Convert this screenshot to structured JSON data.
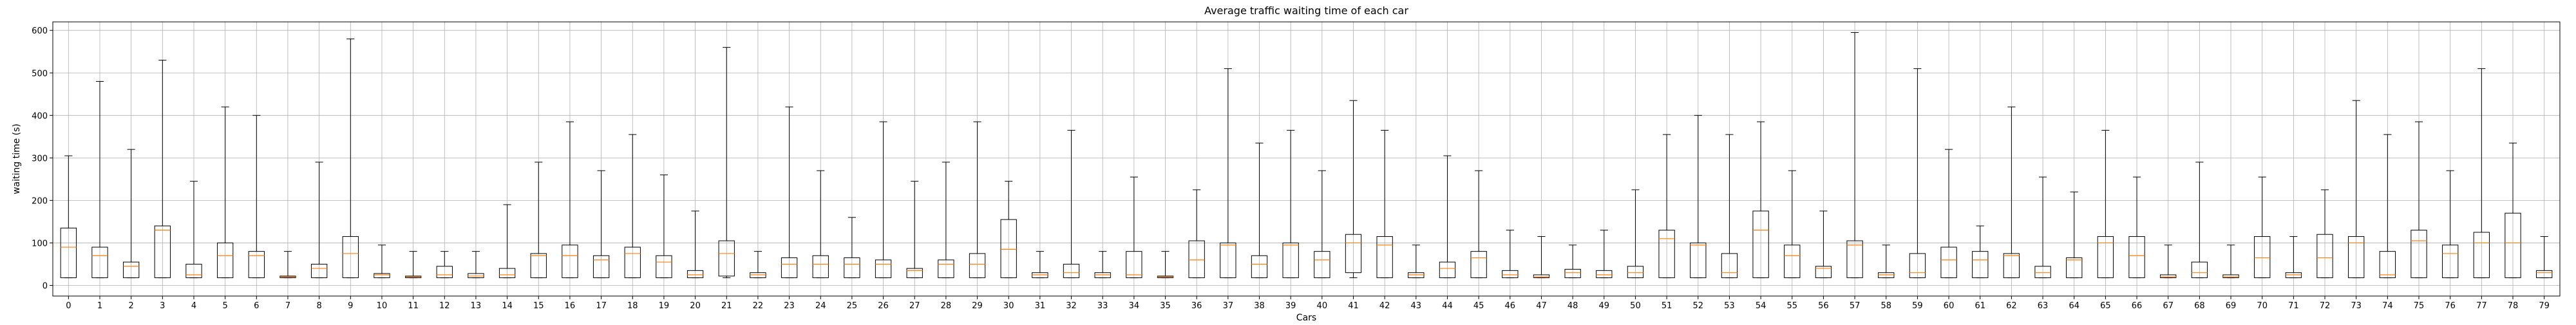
{
  "chart_data": {
    "type": "box",
    "title": "Average traffic waiting time of each car",
    "xlabel": "Cars",
    "ylabel": "waiting time (s)",
    "ylim": [
      -25,
      620
    ],
    "yticks": [
      0,
      100,
      200,
      300,
      400,
      500,
      600
    ],
    "grid": true,
    "categories": [
      "0",
      "1",
      "2",
      "3",
      "4",
      "5",
      "6",
      "7",
      "8",
      "9",
      "10",
      "11",
      "12",
      "13",
      "14",
      "15",
      "16",
      "17",
      "18",
      "19",
      "20",
      "21",
      "22",
      "23",
      "24",
      "25",
      "26",
      "27",
      "28",
      "29",
      "30",
      "31",
      "32",
      "33",
      "34",
      "35",
      "36",
      "37",
      "38",
      "39",
      "40",
      "41",
      "42",
      "43",
      "44",
      "45",
      "46",
      "47",
      "48",
      "49",
      "50",
      "51",
      "52",
      "53",
      "54",
      "55",
      "56",
      "57",
      "58",
      "59",
      "60",
      "61",
      "62",
      "63",
      "64",
      "65",
      "66",
      "67",
      "68",
      "69",
      "70",
      "71",
      "72",
      "73",
      "74",
      "75",
      "76",
      "77",
      "78",
      "79"
    ],
    "whisker_low": [
      18,
      18,
      18,
      18,
      18,
      18,
      18,
      18,
      18,
      18,
      18,
      18,
      18,
      18,
      18,
      18,
      18,
      18,
      18,
      18,
      18,
      18,
      18,
      18,
      18,
      18,
      18,
      18,
      18,
      18,
      18,
      18,
      18,
      18,
      18,
      18,
      18,
      18,
      18,
      18,
      18,
      18,
      18,
      18,
      18,
      18,
      18,
      18,
      18,
      18,
      18,
      18,
      18,
      18,
      18,
      18,
      18,
      18,
      18,
      18,
      18,
      18,
      18,
      18,
      18,
      18,
      18,
      18,
      18,
      18,
      18,
      18,
      18,
      18,
      18,
      18,
      18,
      18,
      18,
      18
    ],
    "q1": [
      18,
      18,
      18,
      18,
      18,
      18,
      18,
      18,
      18,
      18,
      18,
      18,
      18,
      18,
      18,
      18,
      18,
      18,
      18,
      18,
      18,
      22,
      18,
      18,
      18,
      18,
      18,
      18,
      18,
      18,
      18,
      18,
      18,
      18,
      18,
      18,
      18,
      18,
      18,
      18,
      18,
      30,
      18,
      18,
      18,
      18,
      18,
      18,
      18,
      18,
      18,
      18,
      18,
      18,
      18,
      18,
      18,
      18,
      18,
      18,
      18,
      18,
      18,
      18,
      18,
      18,
      18,
      18,
      18,
      18,
      18,
      18,
      18,
      18,
      18,
      18,
      18,
      18,
      18,
      18
    ],
    "median": [
      90,
      70,
      45,
      130,
      25,
      70,
      70,
      20,
      40,
      75,
      25,
      20,
      25,
      22,
      25,
      70,
      70,
      60,
      75,
      55,
      25,
      75,
      25,
      50,
      50,
      50,
      50,
      35,
      50,
      50,
      85,
      25,
      30,
      25,
      25,
      20,
      60,
      95,
      50,
      95,
      60,
      100,
      95,
      25,
      40,
      65,
      25,
      20,
      30,
      25,
      30,
      110,
      95,
      30,
      130,
      70,
      40,
      95,
      25,
      30,
      60,
      60,
      70,
      30,
      60,
      100,
      70,
      20,
      30,
      20,
      65,
      25,
      65,
      100,
      25,
      105,
      75,
      100,
      100,
      30
    ],
    "q3": [
      135,
      90,
      55,
      140,
      50,
      100,
      80,
      22,
      50,
      115,
      28,
      22,
      45,
      28,
      40,
      75,
      95,
      70,
      90,
      70,
      35,
      105,
      30,
      65,
      70,
      65,
      60,
      40,
      60,
      75,
      155,
      30,
      50,
      30,
      80,
      22,
      105,
      100,
      70,
      100,
      80,
      120,
      115,
      30,
      55,
      80,
      35,
      25,
      38,
      35,
      45,
      130,
      100,
      75,
      175,
      95,
      45,
      105,
      30,
      75,
      90,
      80,
      75,
      45,
      65,
      115,
      115,
      25,
      55,
      25,
      115,
      30,
      120,
      115,
      80,
      130,
      95,
      125,
      170,
      35
    ],
    "whisker_high": [
      305,
      480,
      320,
      530,
      245,
      420,
      400,
      80,
      290,
      580,
      95,
      80,
      80,
      80,
      190,
      290,
      385,
      270,
      355,
      260,
      175,
      560,
      80,
      420,
      270,
      160,
      385,
      245,
      290,
      385,
      245,
      80,
      365,
      80,
      255,
      80,
      225,
      510,
      335,
      365,
      270,
      435,
      365,
      95,
      305,
      270,
      130,
      115,
      95,
      130,
      225,
      355,
      400,
      355,
      385,
      270,
      175,
      595,
      95,
      510,
      320,
      140,
      420,
      255,
      220,
      365,
      255,
      95,
      290,
      95,
      255,
      115,
      225,
      435,
      355,
      385,
      270,
      510,
      335,
      115
    ],
    "median_color": "#ff7f0e",
    "box_color": "#000000",
    "grid_color": "#b0b0b0"
  }
}
